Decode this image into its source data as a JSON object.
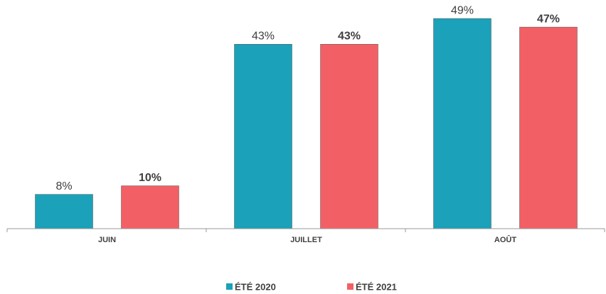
{
  "chart_data": {
    "type": "bar",
    "categories": [
      "JUIN",
      "JUILLET",
      "AOÛT"
    ],
    "series": [
      {
        "name": "ÉTÉ 2020",
        "color": "#1ba1b9",
        "values": [
          8,
          43,
          49
        ],
        "value_labels": [
          "8%",
          "43%",
          "49%"
        ]
      },
      {
        "name": "ÉTÉ 2021",
        "color": "#f26066",
        "values": [
          10,
          43,
          47
        ],
        "value_labels": [
          "10%",
          "43%",
          "47%"
        ]
      }
    ],
    "ylim": [
      0,
      50
    ],
    "legend": "bottom"
  }
}
